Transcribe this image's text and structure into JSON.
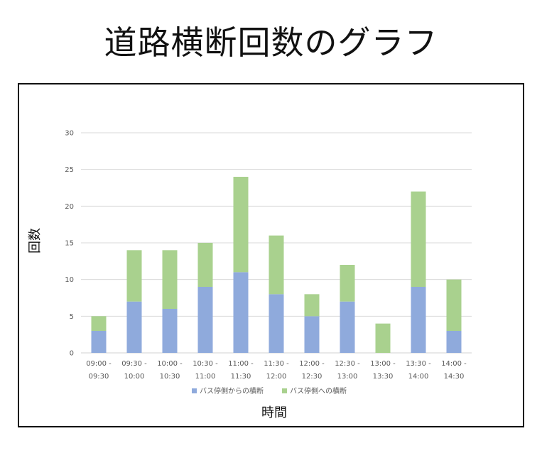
{
  "title": "道路横断回数のグラフ",
  "colors": {
    "series1": "#8faadc",
    "series2": "#a9d18e",
    "grid": "#d9d9d9"
  },
  "chart_data": {
    "type": "bar",
    "stacked": true,
    "title": "道路横断回数のグラフ",
    "xlabel": "時間",
    "ylabel": "回数",
    "ylim": [
      0,
      30
    ],
    "yticks": [
      0,
      5,
      10,
      15,
      20,
      25,
      30
    ],
    "grid": true,
    "legend": "bottom",
    "categories": [
      [
        "09:00 -",
        "09:30"
      ],
      [
        "09:30 -",
        "10:00"
      ],
      [
        "10:00 -",
        "10:30"
      ],
      [
        "10:30 -",
        "11:00"
      ],
      [
        "11:00 -",
        "11:30"
      ],
      [
        "11:30 -",
        "12:00"
      ],
      [
        "12:00 -",
        "12:30"
      ],
      [
        "12:30 -",
        "13:00"
      ],
      [
        "13:00 -",
        "13:30"
      ],
      [
        "13:30 -",
        "14:00"
      ],
      [
        "14:00 -",
        "14:30"
      ]
    ],
    "series": [
      {
        "name": "バス停側からの横断",
        "values": [
          3,
          7,
          6,
          9,
          11,
          8,
          5,
          7,
          0,
          9,
          3
        ]
      },
      {
        "name": "バス停側への横断",
        "values": [
          2,
          7,
          8,
          6,
          13,
          8,
          3,
          5,
          4,
          13,
          7
        ]
      }
    ]
  }
}
